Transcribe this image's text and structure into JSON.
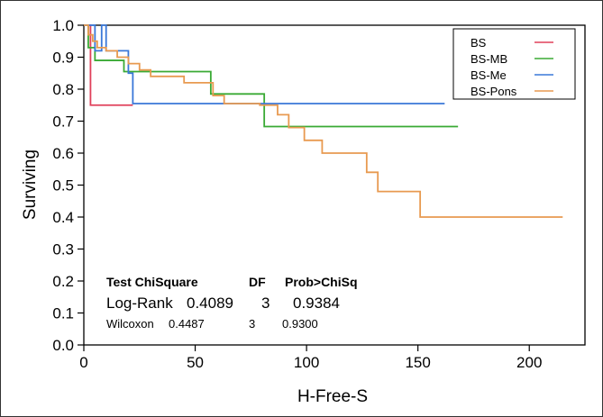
{
  "chart_data": {
    "type": "line",
    "step": true,
    "xlabel": "H-Free-S",
    "ylabel": "Surviving",
    "xlim": [
      0,
      225
    ],
    "ylim": [
      0,
      1.0
    ],
    "x_ticks": [
      "0",
      "50",
      "100",
      "150",
      "200"
    ],
    "y_ticks": [
      "0.0",
      "0.1",
      "0.2",
      "0.3",
      "0.4",
      "0.5",
      "0.6",
      "0.7",
      "0.8",
      "0.9",
      "1.0"
    ],
    "legend_position": "top-right",
    "series": [
      {
        "name": "BS",
        "color": "#e0405a",
        "x": [
          0,
          3,
          22
        ],
        "y": [
          1.0,
          0.75,
          0.75
        ]
      },
      {
        "name": "BS-MB",
        "color": "#3aaa35",
        "x": [
          0,
          2,
          5,
          12,
          18,
          22,
          57,
          81,
          168
        ],
        "y": [
          1.0,
          0.93,
          0.89,
          0.89,
          0.855,
          0.855,
          0.785,
          0.683,
          0.683
        ]
      },
      {
        "name": "BS-Me",
        "color": "#3a78d8",
        "x": [
          0,
          5,
          8,
          10,
          12,
          20,
          22,
          162
        ],
        "y": [
          1.0,
          0.92,
          1.0,
          0.92,
          0.92,
          0.85,
          0.755,
          0.755
        ]
      },
      {
        "name": "BS-Pons",
        "color": "#e89a50",
        "x": [
          0,
          2,
          4,
          6,
          10,
          15,
          20,
          25,
          30,
          45,
          58,
          63,
          79,
          87,
          92,
          99,
          107,
          127,
          132,
          151,
          215
        ],
        "y": [
          1.0,
          0.97,
          0.95,
          0.93,
          0.92,
          0.9,
          0.88,
          0.86,
          0.84,
          0.82,
          0.78,
          0.755,
          0.75,
          0.72,
          0.68,
          0.64,
          0.6,
          0.54,
          0.48,
          0.4,
          0.4
        ]
      }
    ],
    "stats_table": {
      "header": [
        "Test ChiSquare",
        "DF",
        "Prob>ChiSq"
      ],
      "rows": [
        {
          "test": "Log-Rank",
          "chisq": "0.4089",
          "df": "3",
          "p": "0.9384"
        },
        {
          "test": "Wilcoxon",
          "chisq": "0.4487",
          "df": "3",
          "p": "0.9300"
        }
      ]
    }
  }
}
